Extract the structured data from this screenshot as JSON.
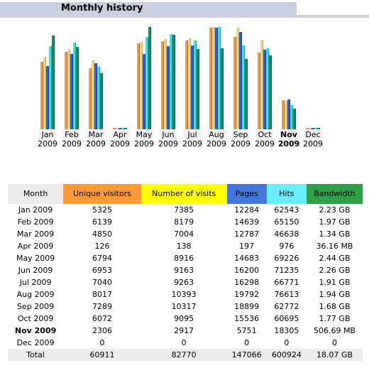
{
  "header": {
    "title": "Monthly history"
  },
  "colors": {
    "unique": "#e8a050",
    "visits": "#e8d890",
    "pages": "#3060c0",
    "hits": "#40e0e0",
    "bandwidth": "#109060",
    "header_bar": "#cccfe0"
  },
  "chart_data": {
    "type": "bar",
    "categories": [
      {
        "month": "Jan",
        "year": "2009",
        "bold": false
      },
      {
        "month": "Feb",
        "year": "2009",
        "bold": false
      },
      {
        "month": "Mar",
        "year": "2009",
        "bold": false
      },
      {
        "month": "Apr",
        "year": "2009",
        "bold": false
      },
      {
        "month": "May",
        "year": "2009",
        "bold": false
      },
      {
        "month": "Jun",
        "year": "2009",
        "bold": false
      },
      {
        "month": "Jul",
        "year": "2009",
        "bold": false
      },
      {
        "month": "Aug",
        "year": "2009",
        "bold": false
      },
      {
        "month": "Sep",
        "year": "2009",
        "bold": false
      },
      {
        "month": "Oct",
        "year": "2009",
        "bold": false
      },
      {
        "month": "Nov",
        "year": "2009",
        "bold": true
      },
      {
        "month": "Dec",
        "year": "2009",
        "bold": false
      }
    ],
    "series": [
      {
        "name": "Unique visitors",
        "values": [
          5325,
          6139,
          4850,
          126,
          6794,
          6953,
          7040,
          8017,
          7289,
          6072,
          2306,
          0
        ]
      },
      {
        "name": "Number of visits",
        "values": [
          7385,
          8179,
          7004,
          138,
          8916,
          9163,
          9263,
          10393,
          10317,
          9095,
          2917,
          0
        ]
      },
      {
        "name": "Pages",
        "values": [
          12284,
          14639,
          12787,
          197,
          14683,
          16200,
          16298,
          19792,
          18899,
          15536,
          5751,
          0
        ]
      },
      {
        "name": "Hits",
        "values": [
          62543,
          65150,
          46638,
          976,
          69226,
          71235,
          66771,
          76613,
          62772,
          60695,
          18305,
          0
        ]
      },
      {
        "name": "Bandwidth",
        "values": [
          2.23,
          1.97,
          1.34,
          0.0353,
          2.44,
          2.26,
          1.91,
          1.94,
          1.68,
          1.77,
          0.495,
          0
        ]
      }
    ]
  },
  "table": {
    "headers": {
      "month": "Month",
      "unique": "Unique visitors",
      "visits": "Number of visits",
      "pages": "Pages",
      "hits": "Hits",
      "bandwidth": "Bandwidth"
    },
    "rows": [
      {
        "month": "Jan 2009",
        "unique": "5325",
        "visits": "7385",
        "pages": "12284",
        "hits": "62543",
        "bandwidth": "2.23 GB"
      },
      {
        "month": "Feb 2009",
        "unique": "6139",
        "visits": "8179",
        "pages": "14639",
        "hits": "65150",
        "bandwidth": "1.97 GB"
      },
      {
        "month": "Mar 2009",
        "unique": "4850",
        "visits": "7004",
        "pages": "12787",
        "hits": "46638",
        "bandwidth": "1.34 GB"
      },
      {
        "month": "Apr 2009",
        "unique": "126",
        "visits": "138",
        "pages": "197",
        "hits": "976",
        "bandwidth": "36.16 MB"
      },
      {
        "month": "May 2009",
        "unique": "6794",
        "visits": "8916",
        "pages": "14683",
        "hits": "69226",
        "bandwidth": "2.44 GB"
      },
      {
        "month": "Jun 2009",
        "unique": "6953",
        "visits": "9163",
        "pages": "16200",
        "hits": "71235",
        "bandwidth": "2.26 GB"
      },
      {
        "month": "Jul 2009",
        "unique": "7040",
        "visits": "9263",
        "pages": "16298",
        "hits": "66771",
        "bandwidth": "1.91 GB"
      },
      {
        "month": "Aug 2009",
        "unique": "8017",
        "visits": "10393",
        "pages": "19792",
        "hits": "76613",
        "bandwidth": "1.94 GB"
      },
      {
        "month": "Sep 2009",
        "unique": "7289",
        "visits": "10317",
        "pages": "18899",
        "hits": "62772",
        "bandwidth": "1.68 GB"
      },
      {
        "month": "Oct 2009",
        "unique": "6072",
        "visits": "9095",
        "pages": "15536",
        "hits": "60695",
        "bandwidth": "1.77 GB"
      },
      {
        "month": "Nov 2009",
        "unique": "2306",
        "visits": "2917",
        "pages": "5751",
        "hits": "18305",
        "bandwidth": "506.69 MB",
        "bold": true
      },
      {
        "month": "Dec 2009",
        "unique": "0",
        "visits": "0",
        "pages": "0",
        "hits": "0",
        "bandwidth": "0"
      }
    ],
    "total": {
      "month": "Total",
      "unique": "60911",
      "visits": "82770",
      "pages": "147066",
      "hits": "600924",
      "bandwidth": "18.07 GB"
    }
  }
}
